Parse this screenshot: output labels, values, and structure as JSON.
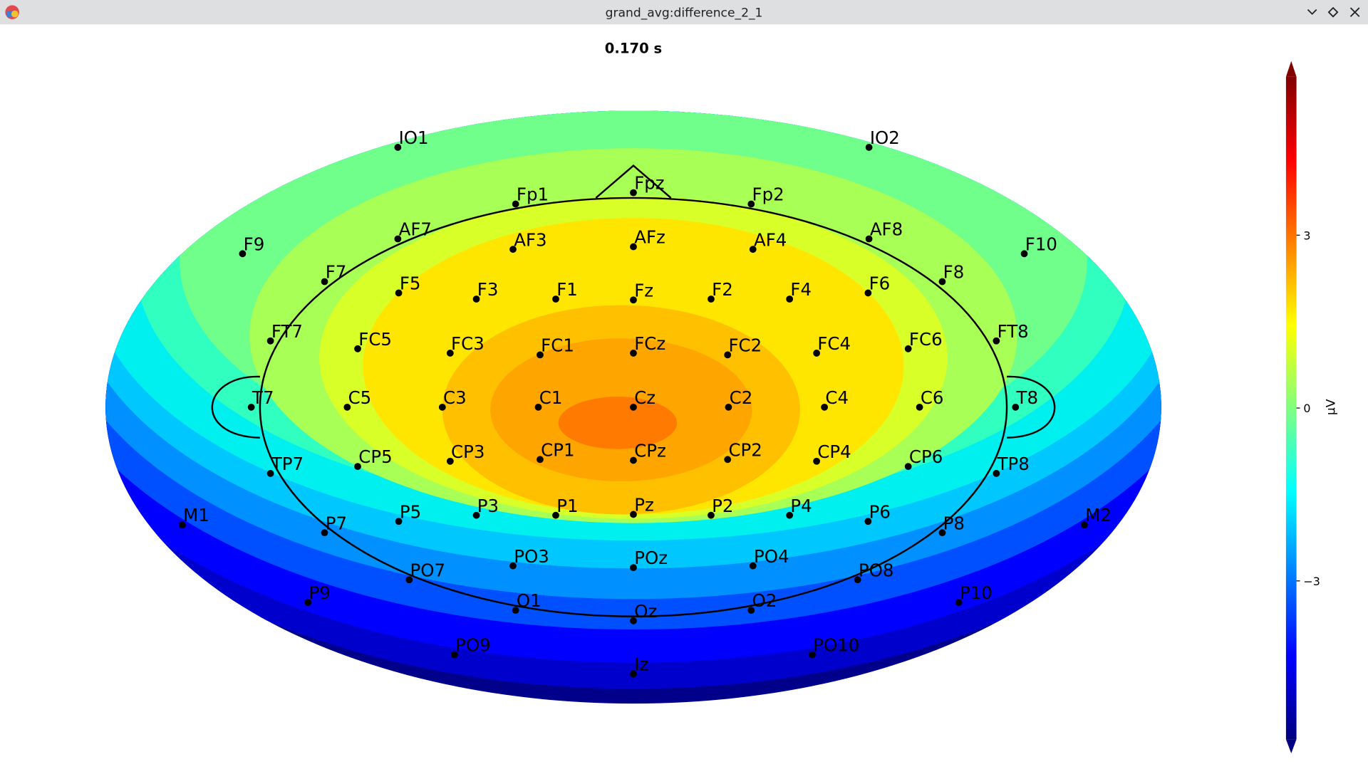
{
  "window": {
    "title": "grand_avg:difference_2_1"
  },
  "chart_data": {
    "type": "topomap",
    "title": "0.170 s",
    "channels": [
      "IO1",
      "IO2",
      "Fp1",
      "Fpz",
      "Fp2",
      "AF7",
      "AF3",
      "AFz",
      "AF4",
      "AF8",
      "F9",
      "F10",
      "F7",
      "F5",
      "F3",
      "F1",
      "Fz",
      "F2",
      "F4",
      "F6",
      "F8",
      "FT7",
      "FC5",
      "FC3",
      "FC1",
      "FCz",
      "FC2",
      "FC4",
      "FC6",
      "FT8",
      "T7",
      "C5",
      "C3",
      "C1",
      "Cz",
      "C2",
      "C4",
      "C6",
      "T8",
      "TP7",
      "CP5",
      "CP3",
      "CP1",
      "CPz",
      "CP2",
      "CP4",
      "CP6",
      "TP8",
      "M1",
      "P7",
      "P5",
      "P3",
      "P1",
      "Pz",
      "P2",
      "P4",
      "P6",
      "P8",
      "M2",
      "PO7",
      "PO3",
      "POz",
      "PO4",
      "PO8",
      "P9",
      "O1",
      "Oz",
      "O2",
      "P10",
      "PO9",
      "PO10",
      "Iz"
    ],
    "colorbar": {
      "label": "µV",
      "clim": [
        -5.75,
        5.75
      ],
      "ticks": [
        {
          "value": -3,
          "label": "−3"
        },
        0,
        3
      ]
    }
  }
}
